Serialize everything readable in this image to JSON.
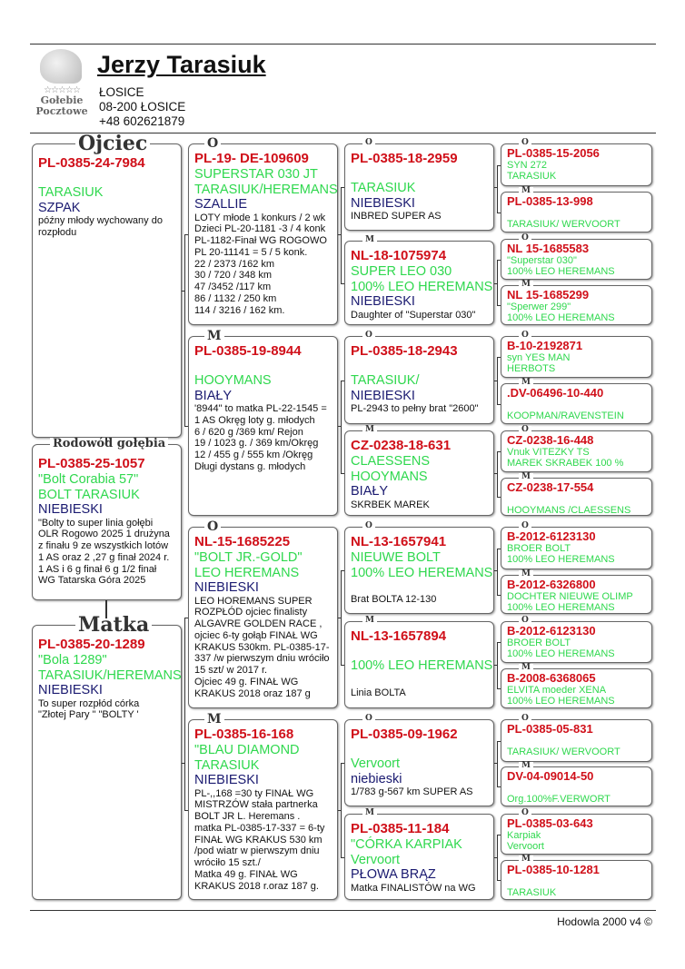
{
  "header": {
    "owner": "Jerzy Tarasiuk",
    "address": [
      "ŁOSICE",
      "08-200 ŁOSICE",
      "+48 602621879"
    ],
    "logo_text": [
      "Gołebie",
      "Pocztowe"
    ]
  },
  "footer": "Hodowla 2000 v4 ©",
  "colors": {
    "ring": "#d0101a",
    "strain": "#2fd84e",
    "color": "#1a1a70"
  },
  "columns": [
    [
      {
        "label": "Ojciec",
        "ring": "PL-0385-24-7984",
        "lines": [
          {
            "c": "b",
            "t": ""
          },
          {
            "c": "g",
            "t": "TARASIUK"
          },
          {
            "c": "n",
            "t": "SZPAK"
          },
          {
            "c": "k",
            "t": "późny młody wychowany do rozpłodu"
          }
        ]
      },
      {
        "label": "Rodowód gołębia",
        "ring": "PL-0385-25-1057",
        "lines": [
          {
            "c": "g",
            "t": "\"Bolt Corabia 57\""
          },
          {
            "c": "g",
            "t": "BOLT TARASIUK"
          },
          {
            "c": "n",
            "t": "NIEBIESKI"
          },
          {
            "c": "k",
            "t": "\"Bolty to super linia gołębi\nOLR Rogowo 2025 1 drużyna\nz finału 9 ze wszystkich lotów\n 1 AS oraz 2 ,27 g finał 2024 r.\n1 AS i 6 g finał 6 g 1/2 finał\nWG Tatarska Góra  2025"
          }
        ]
      },
      {
        "label": "Matka",
        "ring": "PL-0385-20-1289",
        "lines": [
          {
            "c": "g",
            "t": "\"Bola 1289\""
          },
          {
            "c": "g",
            "t": "TARASIUK/HEREMANS"
          },
          {
            "c": "n",
            "t": "NIEBIESKI"
          },
          {
            "c": "k",
            "t": "To  super rozpłód córka\n\"Złotej Pary \" \"BOLTY '"
          }
        ]
      }
    ],
    [
      {
        "label": "O",
        "ring": "PL-19- DE-109609",
        "lines": [
          {
            "c": "g",
            "t": "SUPERSTAR 030 JT"
          },
          {
            "c": "g",
            "t": "TARASIUK/HEREMANS"
          },
          {
            "c": "n",
            "t": "SZALLIE"
          },
          {
            "c": "k",
            "t": "LOTY młode  1 konkurs / 2 wk\nDzieci PL-20-1181 -3 / 4 konk\nPL-1182-Finał WG ROGOWO\nPL 20-11141 = 5 / 5 konk.\n 22 / 2373 /162 km\n 30 / 720 / 348 km\n 47 /3452 /117 km\n86 / 1132 / 250 km\n 114 / 3216 / 162 km."
          }
        ]
      },
      {
        "label": "M",
        "ring": "PL-0385-19-8944",
        "lines": [
          {
            "c": "b",
            "t": ""
          },
          {
            "c": "g",
            "t": "HOOYMANS"
          },
          {
            "c": "n",
            "t": "BIAŁY"
          },
          {
            "c": "k",
            "t": "'8944\" to matka PL-22-1545 =\n 1 AS Okręg loty g. młodych\n 6 / 620 g /369 km/ Rejon\n 19 / 1023 g. / 369 km/Okręg\n 12 / 455 g / 555 km /Okręg\n Długi dystans g. młodych"
          }
        ]
      },
      {
        "label": "O",
        "ring": "NL-15-1685225",
        "lines": [
          {
            "c": "g",
            "t": "\"BOLT JR.-GOLD\""
          },
          {
            "c": "g",
            "t": "LEO HEREMANS"
          },
          {
            "c": "n",
            "t": "NIEBIESKI"
          },
          {
            "c": "k",
            "t": "LEO HOREMANS SUPER\nROZPŁÓD ojciec finalisty\nALGAVRE GOLDEN RACE  ,\nojciec 6-ty gołąb FINAŁ WG\nKRAKUS 530km. PL-0385-17-\n337 /w pierwszym dniu wróciło\n15 szt/ w 2017 r.\nOjciec 49 g. FINAŁ WG\nKRAKUS 2018  oraz 187 g"
          }
        ]
      },
      {
        "label": "M",
        "ring": "PL-0385-16-168",
        "lines": [
          {
            "c": "g",
            "t": "\"BLAU DIAMOND"
          },
          {
            "c": "g",
            "t": "TARASIUK"
          },
          {
            "c": "n",
            "t": "NIEBIESKI"
          },
          {
            "c": "k",
            "t": "PL-,,168 =30 ty FINAŁ WG\nMISTRZÓW stała partnerka\nBOLT JR L. Heremans .\nmatka PL-0385-17-337 = 6-ty\nFINAŁ WG KRAKUS 530 km\n/pod wiatr w pierwszym dniu\nwróciło 15 szt./\nMatka 49 g. FINAŁ WG\nKRAKUS 2018 r.oraz 187 g."
          }
        ]
      }
    ],
    [
      {
        "label": "O",
        "ring": "PL-0385-18-2959",
        "lines": [
          {
            "c": "b",
            "t": ""
          },
          {
            "c": "g",
            "t": "TARASIUK"
          },
          {
            "c": "n",
            "t": "NIEBIESKI"
          },
          {
            "c": "k",
            "t": "INBRED SUPER  AS"
          }
        ]
      },
      {
        "label": "M",
        "ring": "NL-18-1075974",
        "lines": [
          {
            "c": "g",
            "t": "SUPER LEO 030"
          },
          {
            "c": "g",
            "t": "100% LEO HEREMANS"
          },
          {
            "c": "n",
            "t": "NIEBIESKI"
          },
          {
            "c": "k",
            "t": "Daughter of \"Superstar 030\""
          }
        ]
      },
      {
        "label": "O",
        "ring": "PL-0385-18-2943",
        "lines": [
          {
            "c": "b",
            "t": ""
          },
          {
            "c": "g",
            "t": "TARASIUK/"
          },
          {
            "c": "n",
            "t": "NIEBIESKI"
          },
          {
            "c": "k",
            "t": "PL-2943 to pełny brat \"2600\""
          }
        ]
      },
      {
        "label": "M",
        "ring": "CZ-0238-18-631",
        "lines": [
          {
            "c": "g",
            "t": "CLAESSENS"
          },
          {
            "c": "g",
            "t": "HOOYMANS"
          },
          {
            "c": "n",
            "t": "BIAŁY"
          },
          {
            "c": "k",
            "t": " SKRBEK MAREK"
          }
        ]
      },
      {
        "label": "O",
        "ring": "NL-13-1657941",
        "lines": [
          {
            "c": "g",
            "t": "NIEUWE BOLT"
          },
          {
            "c": "g",
            "t": "100% LEO HEREMANS"
          },
          {
            "c": "b",
            "t": ""
          },
          {
            "c": "k",
            "t": " Brat BOLTA  12-130"
          }
        ]
      },
      {
        "label": "M",
        "ring": "NL-13-1657894",
        "lines": [
          {
            "c": "b",
            "t": ""
          },
          {
            "c": "g",
            "t": "100% LEO HEREMANS"
          },
          {
            "c": "b",
            "t": ""
          },
          {
            "c": "k",
            "t": "Linia BOLTA"
          }
        ]
      },
      {
        "label": "O",
        "ring": "PL-0385-09-1962",
        "lines": [
          {
            "c": "b",
            "t": ""
          },
          {
            "c": "g",
            "t": "Vervoort"
          },
          {
            "c": "n",
            "t": "niebieski"
          },
          {
            "c": "k",
            "t": "1/783 g-567 km SUPER AS"
          }
        ]
      },
      {
        "label": "M",
        "ring": "PL-0385-11-184",
        "lines": [
          {
            "c": "g",
            "t": "\"CÓRKA KARPIAK"
          },
          {
            "c": "g",
            "t": "Vervoort"
          },
          {
            "c": "n",
            "t": "PŁOWA  BRĄZ"
          },
          {
            "c": "k",
            "t": "Matka FINALISTÓW na WG"
          }
        ]
      }
    ],
    [
      {
        "label": "O",
        "ring": "PL-0385-15-2056",
        "lines": [
          {
            "c": "g",
            "t": "SYN 272"
          },
          {
            "c": "g",
            "t": "TARASIUK"
          }
        ]
      },
      {
        "label": "M",
        "ring": "PL-0385-13-998",
        "lines": [
          {
            "c": "b",
            "t": ""
          },
          {
            "c": "g",
            "t": "TARASIUK/ WERVOORT"
          }
        ]
      },
      {
        "label": "O",
        "ring": "NL 15-1685583",
        "lines": [
          {
            "c": "g",
            "t": "\"Superstar 030\""
          },
          {
            "c": "g",
            "t": "100% LEO HEREMANS"
          }
        ]
      },
      {
        "label": "M",
        "ring": "NL 15-1685299",
        "lines": [
          {
            "c": "g",
            "t": "\"Sperwer 299\""
          },
          {
            "c": "g",
            "t": "100% LEO HEREMANS"
          }
        ]
      },
      {
        "label": "O",
        "ring": "B-10-2192871",
        "lines": [
          {
            "c": "g",
            "t": "syn YES MAN"
          },
          {
            "c": "g",
            "t": "HERBOTS"
          }
        ]
      },
      {
        "label": "M",
        "ring": ".DV-06496-10-440",
        "lines": [
          {
            "c": "b",
            "t": ""
          },
          {
            "c": "g",
            "t": "KOOPMAN/RAVENSTEIN"
          }
        ]
      },
      {
        "label": "O",
        "ring": "CZ-0238-16-448",
        "lines": [
          {
            "c": "g",
            "t": "Vnuk VITEZKY TS"
          },
          {
            "c": "g",
            "t": "MAREK SKRABEK 100 %"
          }
        ]
      },
      {
        "label": "M",
        "ring": "CZ-0238-17-554",
        "lines": [
          {
            "c": "b",
            "t": ""
          },
          {
            "c": "g",
            "t": "HOOYMANS /CLAESSENS"
          }
        ]
      },
      {
        "label": "O",
        "ring": "B-2012-6123130",
        "lines": [
          {
            "c": "g",
            "t": "BROER BOLT"
          },
          {
            "c": "g",
            "t": "100% LEO HEREMANS"
          }
        ]
      },
      {
        "label": "M",
        "ring": "B-2012-6326800",
        "lines": [
          {
            "c": "g",
            "t": "DOCHTER NIEUWE OLIMP"
          },
          {
            "c": "g",
            "t": "100% LEO HEREMANS"
          }
        ]
      },
      {
        "label": "O",
        "ring": "B-2012-6123130",
        "lines": [
          {
            "c": "g",
            "t": "BROER BOLT"
          },
          {
            "c": "g",
            "t": "100% LEO HEREMANS"
          }
        ]
      },
      {
        "label": "M",
        "ring": "B-2008-6368065",
        "lines": [
          {
            "c": "g",
            "t": "ELVITA  moeder XENA"
          },
          {
            "c": "g",
            "t": "100% LEO HEREMANS"
          }
        ]
      },
      {
        "label": "O",
        "ring": "PL-0385-05-831",
        "lines": [
          {
            "c": "b",
            "t": ""
          },
          {
            "c": "g",
            "t": "TARASIUK/ WERVOORT"
          }
        ]
      },
      {
        "label": "M",
        "ring": "DV-04-09014-50",
        "lines": [
          {
            "c": "b",
            "t": ""
          },
          {
            "c": "g",
            "t": "Org.100%F.VERWORT"
          }
        ]
      },
      {
        "label": "O",
        "ring": "PL-0385-03-643",
        "lines": [
          {
            "c": "g",
            "t": "Karpiak"
          },
          {
            "c": "g",
            "t": "Vervoort"
          }
        ]
      },
      {
        "label": "M",
        "ring": "PL-0385-10-1281",
        "lines": [
          {
            "c": "b",
            "t": ""
          },
          {
            "c": "g",
            "t": "TARASIUK"
          }
        ]
      }
    ]
  ]
}
